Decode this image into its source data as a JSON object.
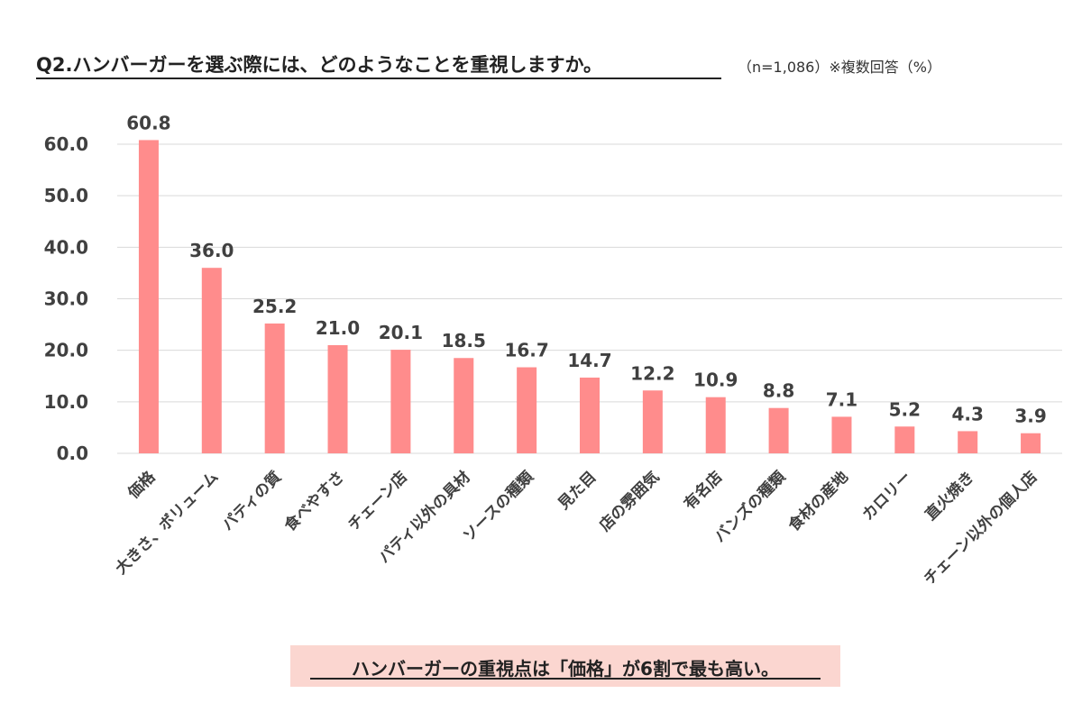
{
  "header": {
    "question": "Q2.ハンバーガーを選ぶ際には、どのようなことを重視しますか。",
    "note": "（n=1,086）※複数回答（%）"
  },
  "callout": {
    "text": "ハンバーガーの重視点は「価格」が6割で最も高い。"
  },
  "colors": {
    "bar": "#ff8c8c",
    "grid": "#d9d9d9",
    "text": "#404040"
  },
  "chart_data": {
    "type": "bar",
    "categories": [
      "価格",
      "大きさ、ボリューム",
      "パティの質",
      "食べやすさ",
      "チェーン店",
      "パティ以外の具材",
      "ソースの種類",
      "見た目",
      "店の雰囲気",
      "有名店",
      "バンズの種類",
      "食材の産地",
      "カロリー",
      "直火焼き",
      "チェーン以外の個人店"
    ],
    "values": [
      60.8,
      36.0,
      25.2,
      21.0,
      20.1,
      18.5,
      16.7,
      14.7,
      12.2,
      10.9,
      8.8,
      7.1,
      5.2,
      4.3,
      3.9
    ],
    "value_labels": [
      "60.8",
      "36.0",
      "25.2",
      "21.0",
      "20.1",
      "18.5",
      "16.7",
      "14.7",
      "12.2",
      "10.9",
      "8.8",
      "7.1",
      "5.2",
      "4.3",
      "3.9"
    ],
    "yticks": [
      0,
      10,
      20,
      30,
      40,
      50,
      60
    ],
    "ytick_labels": [
      "0.0",
      "10.0",
      "20.0",
      "30.0",
      "40.0",
      "50.0",
      "60.0"
    ],
    "ylim": [
      0,
      60
    ],
    "grid": true
  }
}
